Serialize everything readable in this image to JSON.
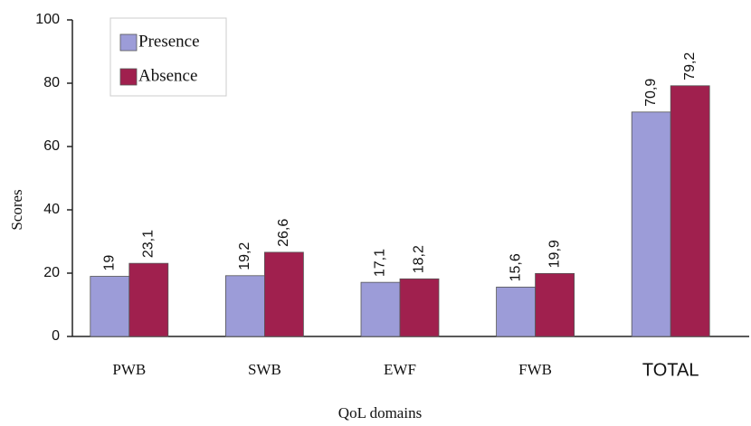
{
  "chart_data": {
    "type": "bar",
    "x_label": "QoL domains",
    "y_label": "Scores",
    "categories": [
      "PWB",
      "SWB",
      "EWF",
      "FWB",
      "TOTAL"
    ],
    "series": [
      {
        "name": "Presence",
        "color": "#9c9cd8",
        "values": [
          19,
          19.2,
          17.1,
          15.6,
          70.9
        ],
        "value_labels": [
          "19",
          "19,2",
          "17,1",
          "15,6",
          "70,9"
        ]
      },
      {
        "name": "Absence",
        "color": "#a0204e",
        "values": [
          23.1,
          26.6,
          18.2,
          19.9,
          79.2
        ],
        "value_labels": [
          "23,1",
          "26,6",
          "18,2",
          "19,9",
          "79,2"
        ]
      }
    ],
    "ylim": [
      0,
      100
    ],
    "yticks": [
      0,
      20,
      40,
      60,
      80,
      100
    ],
    "grid": false,
    "legend": "upper left"
  }
}
